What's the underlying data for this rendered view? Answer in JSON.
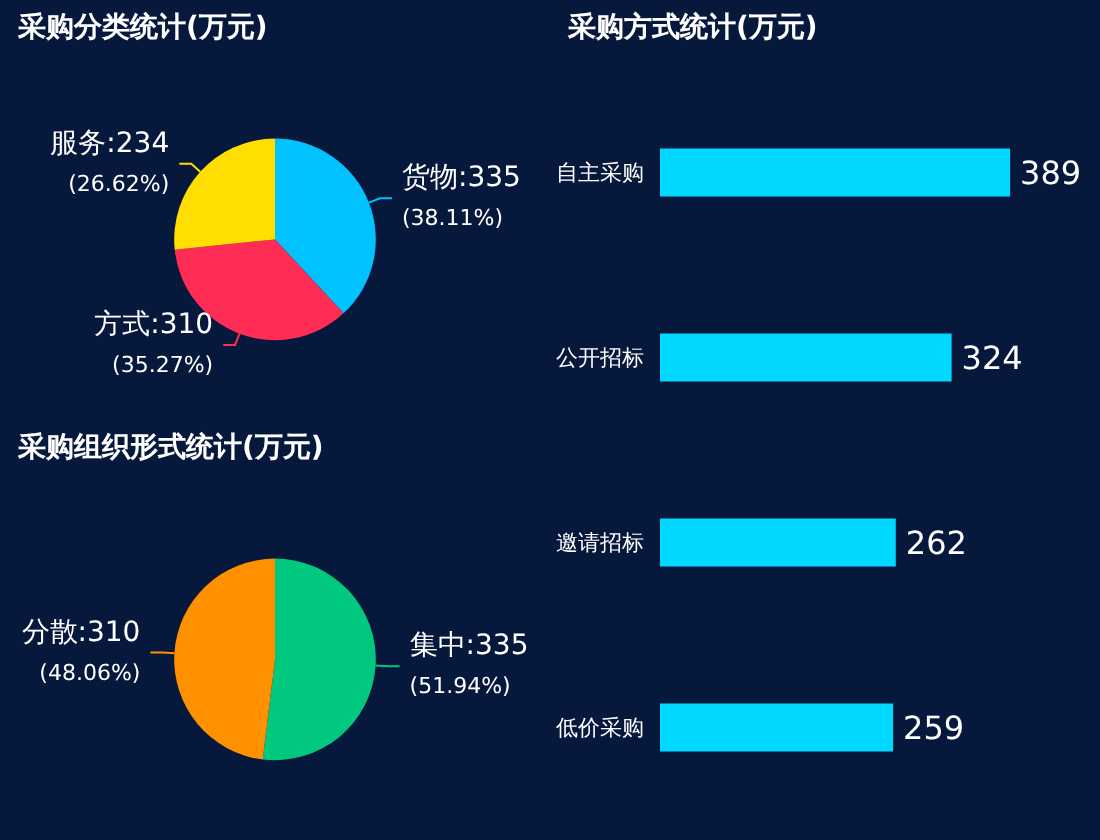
{
  "chart_data": [
    {
      "type": "pie",
      "title": "采购分类统计(万元)",
      "categories": [
        "货物",
        "方式",
        "服务"
      ],
      "values": [
        335,
        310,
        234
      ],
      "colors": [
        "#00c2ff",
        "#ff2d55",
        "#ffde00"
      ],
      "value_labels": [
        "335\n(38.11%)",
        "310\n(35.27%)",
        "234\n(26.62%)"
      ],
      "legend": false
    },
    {
      "type": "bar",
      "orientation": "horizontal",
      "title": "采购方式统计(万元)",
      "categories": [
        "自主采购",
        "公开招标",
        "邀请招标",
        "低价采购"
      ],
      "values": [
        389,
        324,
        262,
        259
      ],
      "color": "#00d8ff",
      "data_labels": true,
      "legend": false
    },
    {
      "type": "pie",
      "title": "采购组织形式统计(万元)",
      "categories": [
        "集中",
        "分散"
      ],
      "values": [
        335,
        310
      ],
      "colors": [
        "#00c97f",
        "#ff9000"
      ],
      "value_labels": [
        "335\n(51.94%)",
        "310\n(48.06%)"
      ],
      "legend": false
    }
  ]
}
